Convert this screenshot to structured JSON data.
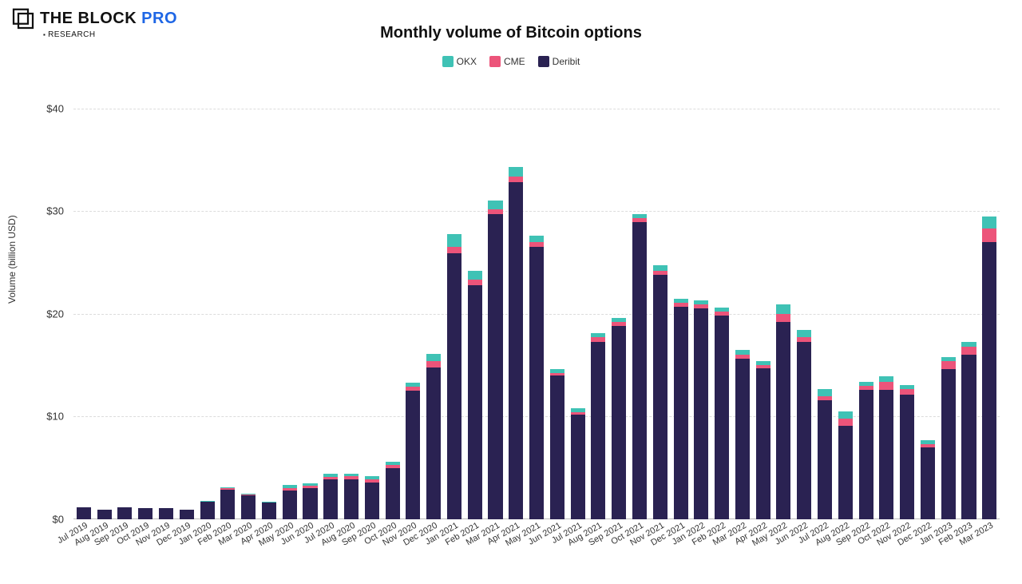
{
  "brand": {
    "name_a": "THE BLOCK",
    "name_b": "PRO",
    "subtitle": "RESEARCH",
    "mark_color": "#111111",
    "accent_color": "#1e66e5"
  },
  "chart": {
    "type": "stacked-bar",
    "title": "Monthly volume of Bitcoin options",
    "ylabel": "Volume (billion USD)",
    "title_fontsize": 20,
    "label_fontsize": 12,
    "tick_fontsize": 13,
    "xlabel_fontsize": 11,
    "background_color": "#ffffff",
    "grid_color": "#dcdcdc",
    "grid_dash": "3,3",
    "ylim": [
      0,
      42
    ],
    "yticks": [
      0,
      10,
      20,
      30,
      40
    ],
    "ytick_labels": [
      "$0",
      "$10",
      "$20",
      "$30",
      "$40"
    ],
    "bar_width_ratio": 0.7,
    "series": [
      {
        "key": "okx",
        "label": "OKX",
        "color": "#3fc2b5"
      },
      {
        "key": "cme",
        "label": "CME",
        "color": "#ec547a"
      },
      {
        "key": "deribit",
        "label": "Deribit",
        "color": "#2a2252"
      }
    ],
    "stack_order_bottom_to_top": [
      "deribit",
      "cme",
      "okx"
    ],
    "categories": [
      "Jul 2019",
      "Aug 2019",
      "Sep 2019",
      "Oct 2019",
      "Nov 2019",
      "Dec 2019",
      "Jan 2020",
      "Feb 2020",
      "Mar 2020",
      "Apr 2020",
      "May 2020",
      "Jun 2020",
      "Jul 2020",
      "Aug 2020",
      "Sep 2020",
      "Oct 2020",
      "Nov 2020",
      "Dec 2020",
      "Jan 2021",
      "Feb 2021",
      "Mar 2021",
      "Apr 2021",
      "May 2021",
      "Jun 2021",
      "Jul 2021",
      "Aug 2021",
      "Sep 2021",
      "Oct 2021",
      "Nov 2021",
      "Dec 2021",
      "Jan 2022",
      "Feb 2022",
      "Mar 2022",
      "Apr 2022",
      "May 2022",
      "Jun 2022",
      "Jul 2022",
      "Aug 2022",
      "Sep 2022",
      "Oct 2022",
      "Nov 2022",
      "Dec 2022",
      "Jan 2023",
      "Feb 2023",
      "Mar 2023"
    ],
    "values": {
      "deribit": [
        1.2,
        0.9,
        1.2,
        1.1,
        1.1,
        0.9,
        1.7,
        2.9,
        2.3,
        1.6,
        2.8,
        3.0,
        3.9,
        3.9,
        3.6,
        5.0,
        12.5,
        14.8,
        25.9,
        22.8,
        29.7,
        32.8,
        26.5,
        14.0,
        10.2,
        17.3,
        18.8,
        28.9,
        23.8,
        20.7,
        20.5,
        19.8,
        15.6,
        14.7,
        19.2,
        17.3,
        11.6,
        9.1,
        12.6,
        12.6,
        12.1,
        7.0,
        14.6,
        16.0,
        27.0
      ],
      "cme": [
        0.0,
        0.0,
        0.0,
        0.0,
        0.0,
        0.0,
        0.05,
        0.1,
        0.1,
        0.05,
        0.25,
        0.25,
        0.25,
        0.3,
        0.3,
        0.3,
        0.4,
        0.6,
        0.6,
        0.5,
        0.5,
        0.6,
        0.5,
        0.25,
        0.25,
        0.4,
        0.4,
        0.4,
        0.4,
        0.4,
        0.4,
        0.4,
        0.4,
        0.3,
        0.8,
        0.4,
        0.4,
        0.7,
        0.4,
        0.8,
        0.6,
        0.3,
        0.8,
        0.8,
        1.3
      ],
      "okx": [
        0.0,
        0.0,
        0.0,
        0.0,
        0.0,
        0.0,
        0.05,
        0.1,
        0.1,
        0.05,
        0.3,
        0.25,
        0.25,
        0.25,
        0.3,
        0.3,
        0.4,
        0.7,
        1.3,
        0.9,
        0.8,
        0.9,
        0.6,
        0.35,
        0.35,
        0.4,
        0.4,
        0.4,
        0.5,
        0.4,
        0.4,
        0.4,
        0.5,
        0.4,
        0.9,
        0.7,
        0.7,
        0.7,
        0.4,
        0.5,
        0.4,
        0.4,
        0.4,
        0.5,
        1.2
      ]
    }
  }
}
